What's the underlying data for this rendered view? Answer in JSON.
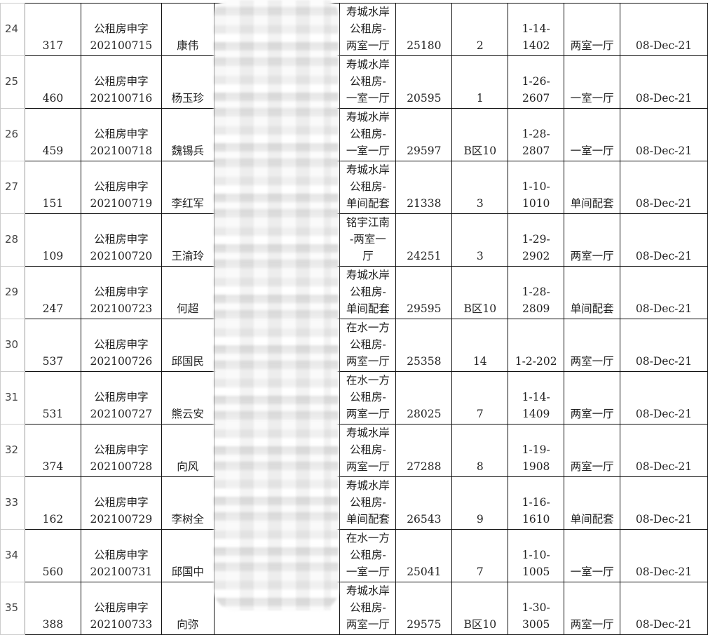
{
  "rows": [
    {
      "row": "24",
      "id": "317",
      "code": "公租房申字\n202100715",
      "name": "康伟",
      "project": "寿城水岸\n公租房-\n两室一厅",
      "num": "25180",
      "seq": "2",
      "room": "1-14-\n1402",
      "type": "两室一厅",
      "date": "08-Dec-21"
    },
    {
      "row": "25",
      "id": "460",
      "code": "公租房申字\n202100716",
      "name": "杨玉珍",
      "project": "寿城水岸\n公租房-\n一室一厅",
      "num": "20595",
      "seq": "1",
      "room": "1-26-\n2607",
      "type": "一室一厅",
      "date": "08-Dec-21"
    },
    {
      "row": "26",
      "id": "459",
      "code": "公租房申字\n202100718",
      "name": "魏锡兵",
      "project": "寿城水岸\n公租房-\n一室一厅",
      "num": "29597",
      "seq": "B区10",
      "room": "1-28-\n2807",
      "type": "一室一厅",
      "date": "08-Dec-21"
    },
    {
      "row": "27",
      "id": "151",
      "code": "公租房申字\n202100719",
      "name": "李红军",
      "project": "寿城水岸\n公租房-\n单间配套",
      "num": "21338",
      "seq": "3",
      "room": "1-10-\n1010",
      "type": "单间配套",
      "date": "08-Dec-21"
    },
    {
      "row": "28",
      "id": "109",
      "code": "公租房申字\n202100720",
      "name": "王渝玲",
      "project": "铭宇江南\n-两室一\n厅",
      "num": "24251",
      "seq": "3",
      "room": "1-29-\n2902",
      "type": "两室一厅",
      "date": "08-Dec-21"
    },
    {
      "row": "29",
      "id": "247",
      "code": "公租房申字\n202100723",
      "name": "何超",
      "project": "寿城水岸\n公租房-\n单间配套",
      "num": "29595",
      "seq": "B区10",
      "room": "1-28-\n2809",
      "type": "单间配套",
      "date": "08-Dec-21"
    },
    {
      "row": "30",
      "id": "537",
      "code": "公租房申字\n202100726",
      "name": "邱国民",
      "project": "在水一方\n公租房-\n两室一厅",
      "num": "25358",
      "seq": "14",
      "room": "1-2-202",
      "type": "两室一厅",
      "date": "08-Dec-21"
    },
    {
      "row": "31",
      "id": "531",
      "code": "公租房申字\n202100727",
      "name": "熊云安",
      "project": "在水一方\n公租房-\n两室一厅",
      "num": "28025",
      "seq": "7",
      "room": "1-14-\n1409",
      "type": "两室一厅",
      "date": "08-Dec-21"
    },
    {
      "row": "32",
      "id": "374",
      "code": "公租房申字\n202100728",
      "name": "向风",
      "project": "寿城水岸\n公租房-\n两室一厅",
      "num": "27288",
      "seq": "8",
      "room": "1-19-\n1908",
      "type": "两室一厅",
      "date": "08-Dec-21"
    },
    {
      "row": "33",
      "id": "162",
      "code": "公租房申字\n202100729",
      "name": "李树全",
      "project": "寿城水岸\n公租房-\n单间配套",
      "num": "26543",
      "seq": "9",
      "room": "1-16-\n1610",
      "type": "单间配套",
      "date": "08-Dec-21"
    },
    {
      "row": "34",
      "id": "560",
      "code": "公租房申字\n202100731",
      "name": "邱国中",
      "project": "在水一方\n公租房-\n一室一厅",
      "num": "25041",
      "seq": "7",
      "room": "1-10-\n1005",
      "type": "一室一厅",
      "date": "08-Dec-21"
    },
    {
      "row": "35",
      "id": "388",
      "code": "公租房申字\n202100733",
      "name": "向弥",
      "project": "寿城水岸\n公租房-\n两室一厅",
      "num": "29575",
      "seq": "B区10",
      "room": "1-30-\n3005",
      "type": "两室一厅",
      "date": "08-Dec-21"
    }
  ]
}
